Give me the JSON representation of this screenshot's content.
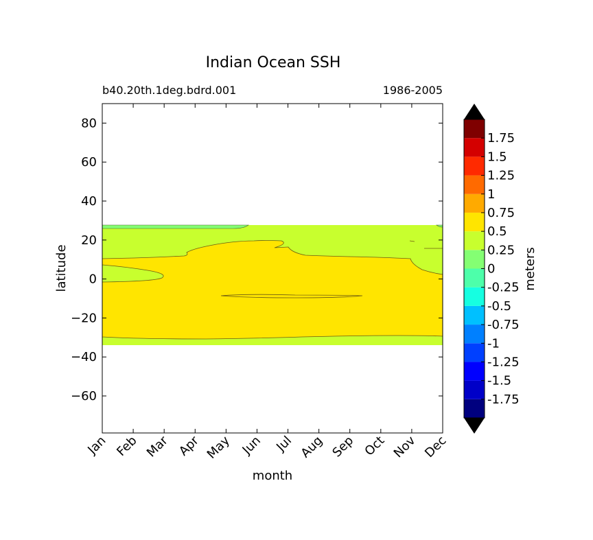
{
  "chart_data": {
    "type": "heatmap",
    "title": "Indian Ocean SSH",
    "subtitle_left": "b40.20th.1deg.bdrd.001",
    "subtitle_right": "1986-2005",
    "xlabel": "month",
    "ylabel": "latitude",
    "x_categories": [
      "Jan",
      "Feb",
      "Mar",
      "Apr",
      "May",
      "Jun",
      "Jul",
      "Aug",
      "Sep",
      "Oct",
      "Nov",
      "Dec"
    ],
    "xlim": [
      1,
      12
    ],
    "ylim": [
      -79,
      90
    ],
    "y_ticks": [
      80,
      60,
      40,
      20,
      0,
      -20,
      -40,
      -60
    ],
    "y_tick_labels": [
      "80",
      "60",
      "40",
      "20",
      "0",
      "−20",
      "−40",
      "−60"
    ],
    "data_lat_range": [
      -34,
      27.5
    ],
    "colorbar": {
      "label": "meters",
      "levels": [
        -1.75,
        -1.5,
        -1.25,
        -1,
        -0.75,
        -0.5,
        -0.25,
        0,
        0.25,
        0.5,
        0.75,
        1,
        1.25,
        1.5,
        1.75
      ],
      "level_labels": [
        "-1.75",
        "-1.5",
        "-1.25",
        "-1",
        "-0.75",
        "-0.5",
        "-0.25",
        "0",
        "0.25",
        "0.5",
        "0.75",
        "1",
        "1.25",
        "1.5",
        "1.75"
      ],
      "colors": [
        "#00007f",
        "#0000c8",
        "#0000ff",
        "#0040ff",
        "#0080ff",
        "#00c0ff",
        "#16ffe1",
        "#4dffaa",
        "#84ff73",
        "#c8ff2e",
        "#ffe500",
        "#ffaa00",
        "#ff6a00",
        "#ff2a00",
        "#d40000",
        "#7f0000"
      ],
      "under_color": "#000000",
      "over_color": "#000000"
    },
    "regions": [
      {
        "name": "background",
        "range_m": [
          0.25,
          0.5
        ],
        "color": "#c8ff2e"
      },
      {
        "name": "main-equatorial-band",
        "range_m": [
          0.5,
          0.75
        ],
        "color": "#ffe500"
      },
      {
        "name": "north-strip",
        "range_m": [
          0,
          0.25
        ],
        "color": "#84ff73"
      }
    ]
  }
}
